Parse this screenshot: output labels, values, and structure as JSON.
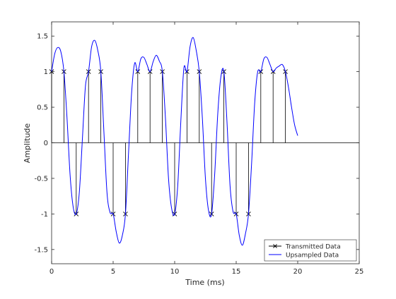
{
  "chart_data": {
    "type": "line",
    "title": "",
    "xlabel": "Time (ms)",
    "ylabel": "Amplitude",
    "xlim": [
      0,
      25
    ],
    "ylim": [
      -1.7,
      1.7
    ],
    "xticks": [
      0,
      5,
      10,
      15,
      20,
      25
    ],
    "xtick_labels": [
      "0",
      "5",
      "10",
      "15",
      "20",
      "25"
    ],
    "yticks": [
      -1.5,
      -1,
      -0.5,
      0,
      0.5,
      1,
      1.5
    ],
    "ytick_labels": [
      "-1.5",
      "-1",
      "-0.5",
      "0",
      "0.5",
      "1",
      "1.5"
    ],
    "grid": false,
    "legend_position": "bottom-right",
    "series": [
      {
        "name": "Transmitted Data",
        "style": "stem",
        "marker": "x",
        "color": "#000000",
        "x": [
          0,
          1,
          2,
          3,
          4,
          5,
          6,
          7,
          8,
          9,
          10,
          11,
          12,
          13,
          14,
          15,
          16,
          17,
          18,
          19
        ],
        "values": [
          1,
          1,
          -1,
          1,
          1,
          -1,
          -1,
          1,
          1,
          1,
          -1,
          1,
          1,
          -1,
          1,
          -1,
          -1,
          1,
          1,
          1
        ]
      },
      {
        "name": "Upsampled Data",
        "style": "line",
        "color": "#0000ff",
        "x": [
          0,
          0.25,
          0.5,
          0.75,
          1,
          1.25,
          1.5,
          1.75,
          2,
          2.25,
          2.5,
          2.75,
          3,
          3.25,
          3.5,
          3.75,
          4,
          4.25,
          4.5,
          4.75,
          5,
          5.25,
          5.5,
          5.75,
          6,
          6.25,
          6.5,
          6.75,
          7,
          7.25,
          7.5,
          7.75,
          8,
          8.25,
          8.5,
          8.75,
          9,
          9.25,
          9.5,
          9.75,
          10,
          10.25,
          10.5,
          10.75,
          11,
          11.25,
          11.5,
          11.75,
          12,
          12.25,
          12.5,
          12.75,
          13,
          13.25,
          13.5,
          13.75,
          14,
          14.25,
          14.5,
          14.75,
          15,
          15.25,
          15.5,
          15.75,
          16,
          16.25,
          16.5,
          16.75,
          17,
          17.25,
          17.5,
          17.75,
          18,
          18.25,
          18.5,
          18.75,
          19,
          19.25,
          19.5,
          19.75,
          20
        ],
        "values": [
          1,
          1.25,
          1.34,
          1.28,
          1,
          0.35,
          -0.45,
          -0.9,
          -1,
          -0.7,
          0.05,
          0.8,
          1,
          1.35,
          1.44,
          1.3,
          1,
          0.15,
          -0.7,
          -0.98,
          -1,
          -1.25,
          -1.41,
          -1.3,
          -1,
          -0.15,
          0.7,
          1.12,
          1,
          1.18,
          1.2,
          1.1,
          1,
          1.14,
          1.23,
          1.15,
          1,
          0.35,
          -0.5,
          -0.92,
          -1,
          -0.6,
          0.3,
          1.05,
          1,
          1.35,
          1.48,
          1.3,
          1,
          0.35,
          -0.5,
          -0.95,
          -1,
          -0.45,
          0.4,
          0.92,
          1,
          0.3,
          -0.6,
          -0.97,
          -1,
          -1.3,
          -1.44,
          -1.28,
          -1,
          -0.3,
          0.55,
          1.0,
          1,
          1.18,
          1.2,
          1.1,
          1,
          1.05,
          1.08,
          1.1,
          1,
          0.78,
          0.5,
          0.25,
          0.1
        ]
      }
    ]
  }
}
